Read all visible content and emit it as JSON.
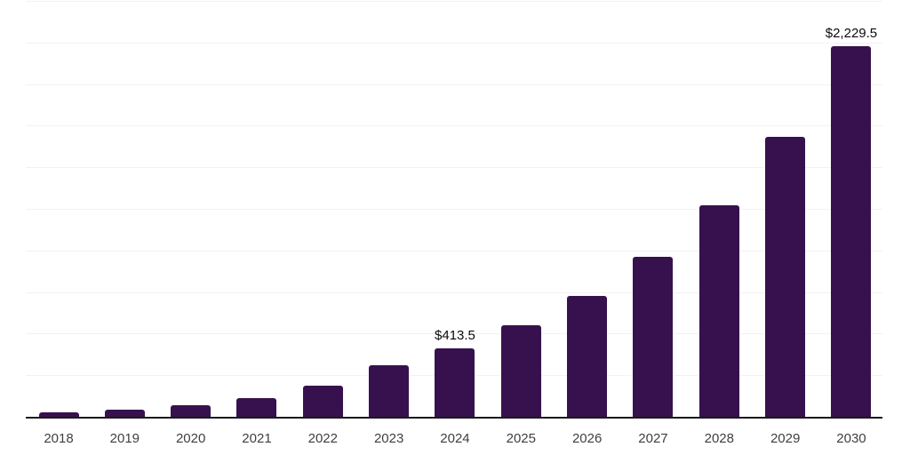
{
  "chart_data": {
    "type": "bar",
    "title": "",
    "xlabel": "",
    "ylabel": "",
    "categories": [
      "2018",
      "2019",
      "2020",
      "2021",
      "2022",
      "2023",
      "2024",
      "2025",
      "2026",
      "2027",
      "2028",
      "2029",
      "2030"
    ],
    "values": [
      28,
      42,
      68,
      113,
      188,
      310,
      413.5,
      547.6,
      725.2,
      960.4,
      1271.9,
      1684.4,
      2229.5
    ],
    "data_labels": [
      "",
      "",
      "",
      "",
      "",
      "",
      "$413.5",
      "",
      "",
      "",
      "",
      "",
      "$2,229.5"
    ],
    "ylim": [
      0,
      2500
    ],
    "gridline_step": 250,
    "grid": "horizontal-only",
    "legend": "none",
    "y_axis_labels_visible": false,
    "colors": {
      "bar": "#37114E",
      "axis_line": "#1a1a1a",
      "gridline": "#f2f2f2",
      "value_label": "#0a0a0a",
      "tick_label": "#3f3f3f",
      "background": "#ffffff"
    }
  }
}
